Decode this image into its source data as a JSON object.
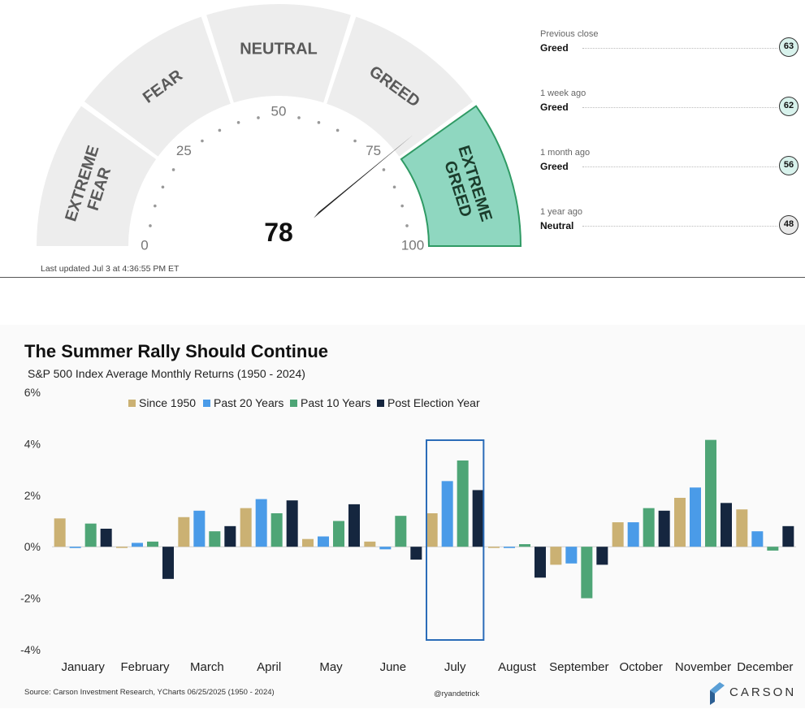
{
  "gauge": {
    "score": 78,
    "zones": [
      "EXTREME FEAR",
      "FEAR",
      "NEUTRAL",
      "GREED",
      "EXTREME GREED"
    ],
    "active_zone": "EXTREME GREED",
    "scale_labels": [
      "0",
      "25",
      "50",
      "75",
      "100"
    ],
    "updated": "Last updated Jul 3 at 4:36:55 PM ET",
    "colors": {
      "zone": "#ededed",
      "active": "#8fd7c0",
      "active_border": "#2f9a64",
      "needle": "#222222"
    }
  },
  "history": [
    {
      "when": "Previous close",
      "rating": "Greed",
      "value": "63",
      "badge_color": "#d8f2ec"
    },
    {
      "when": "1 week ago",
      "rating": "Greed",
      "value": "62",
      "badge_color": "#d8f2ec"
    },
    {
      "when": "1 month ago",
      "rating": "Greed",
      "value": "56",
      "badge_color": "#d8f2ec"
    },
    {
      "when": "1 year ago",
      "rating": "Neutral",
      "value": "48",
      "badge_color": "#e9e9e9"
    }
  ],
  "chart_data": {
    "type": "bar",
    "title": "The Summer Rally Should Continue",
    "subtitle": "S&P 500 Index Average Monthly Returns (1950 - 2024)",
    "categories": [
      "January",
      "February",
      "March",
      "April",
      "May",
      "June",
      "July",
      "August",
      "September",
      "October",
      "November",
      "December"
    ],
    "series": [
      {
        "name": "Since 1950",
        "color": "#cbb173",
        "values": [
          1.1,
          0.0,
          1.15,
          1.5,
          0.3,
          0.2,
          1.3,
          0.0,
          -0.7,
          0.95,
          1.9,
          1.45
        ]
      },
      {
        "name": "Past 20 Years",
        "color": "#4a9be8",
        "values": [
          -0.05,
          0.15,
          1.4,
          1.85,
          0.4,
          -0.1,
          2.55,
          -0.05,
          -0.65,
          0.95,
          2.3,
          0.6
        ]
      },
      {
        "name": "Past 10 Years",
        "color": "#4ea576",
        "values": [
          0.9,
          0.2,
          0.6,
          1.3,
          1.0,
          1.2,
          3.35,
          0.1,
          -2.0,
          1.5,
          4.15,
          -0.15
        ]
      },
      {
        "name": "Post Election Year",
        "color": "#15263f",
        "values": [
          0.7,
          -1.25,
          0.8,
          1.8,
          1.65,
          -0.5,
          2.2,
          -1.2,
          -0.7,
          1.4,
          1.7,
          0.8
        ]
      }
    ],
    "yticks": [
      "-4%",
      "-2%",
      "0%",
      "2%",
      "4%",
      "6%"
    ],
    "ylim": [
      -4,
      6
    ],
    "grid": false,
    "legend": "top",
    "highlight": "July",
    "highlight_color": "#2b6cb8",
    "source": "Source: Carson Investment Research, YCharts 06/25/2025 (1950 - 2024)",
    "credit": "@ryandetrick",
    "brand": "CARSON"
  }
}
